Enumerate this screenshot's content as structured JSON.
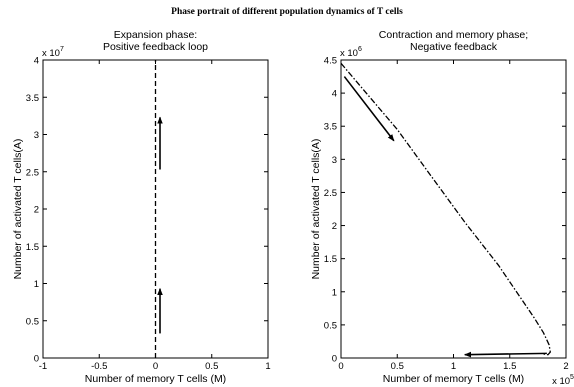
{
  "figure": {
    "title": "Phase portrait of  different population dynamics of T cells"
  },
  "chart_data": [
    {
      "type": "line",
      "title_lines": [
        "Expansion phase:",
        "Positive feedback loop"
      ],
      "xlabel": "Number of memory T cells (M)",
      "ylabel": "Number of activated T cells(A)",
      "xlim": [
        -1,
        1
      ],
      "ylim": [
        0,
        4
      ],
      "xticks": [
        -1,
        -0.5,
        0,
        0.5,
        1
      ],
      "xtick_labels": [
        "-1",
        "-0.5",
        "0",
        "0.5",
        "1"
      ],
      "yticks": [
        0,
        0.5,
        1,
        1.5,
        2,
        2.5,
        3,
        3.5,
        4
      ],
      "ytick_labels": [
        "0",
        "0.5",
        "1",
        "1.5",
        "2",
        "2.5",
        "3",
        "3.5",
        "4"
      ],
      "x_multiplier": null,
      "y_multiplier": {
        "base": "x 10",
        "exponent": "7"
      },
      "grid": false,
      "series": [
        {
          "style": "dashed",
          "x": [
            0,
            0
          ],
          "y": [
            0,
            4
          ]
        }
      ],
      "arrows": [
        {
          "from": [
            0.04,
            0.33
          ],
          "to": [
            0.04,
            0.93
          ]
        },
        {
          "from": [
            0.04,
            2.53
          ],
          "to": [
            0.04,
            3.23
          ]
        }
      ]
    },
    {
      "type": "line",
      "title_lines": [
        "Contraction and memory phase;",
        "Negative feedback"
      ],
      "xlabel": "Number of memory T cells (M)",
      "ylabel": "Number of activated T cells(A)",
      "xlim": [
        0,
        2
      ],
      "ylim": [
        0,
        4.5
      ],
      "xticks": [
        0,
        0.5,
        1,
        1.5,
        2
      ],
      "xtick_labels": [
        "0",
        "0.5",
        "1",
        "1.5",
        "2"
      ],
      "yticks": [
        0,
        0.5,
        1,
        1.5,
        2,
        2.5,
        3,
        3.5,
        4,
        4.5
      ],
      "ytick_labels": [
        "0",
        "0.5",
        "1",
        "1.5",
        "2",
        "2.5",
        "3",
        "3.5",
        "4",
        "4.5"
      ],
      "x_multiplier": {
        "base": "x 10",
        "exponent": "5"
      },
      "y_multiplier": {
        "base": "x 10",
        "exponent": "6"
      },
      "grid": false,
      "series": [
        {
          "style": "dashdot",
          "x": [
            0,
            0.2,
            0.5,
            0.8,
            1.1,
            1.4,
            1.6,
            1.72,
            1.8,
            1.85,
            1.86,
            1.84,
            1.8
          ],
          "y": [
            4.45,
            4.05,
            3.45,
            2.75,
            2.05,
            1.4,
            0.9,
            0.6,
            0.38,
            0.2,
            0.09,
            0.05,
            0.06
          ]
        }
      ],
      "arrows": [
        {
          "from": [
            0.03,
            4.25
          ],
          "to": [
            0.47,
            3.28
          ]
        },
        {
          "from": [
            1.83,
            0.07
          ],
          "to": [
            1.1,
            0.05
          ]
        }
      ]
    }
  ]
}
